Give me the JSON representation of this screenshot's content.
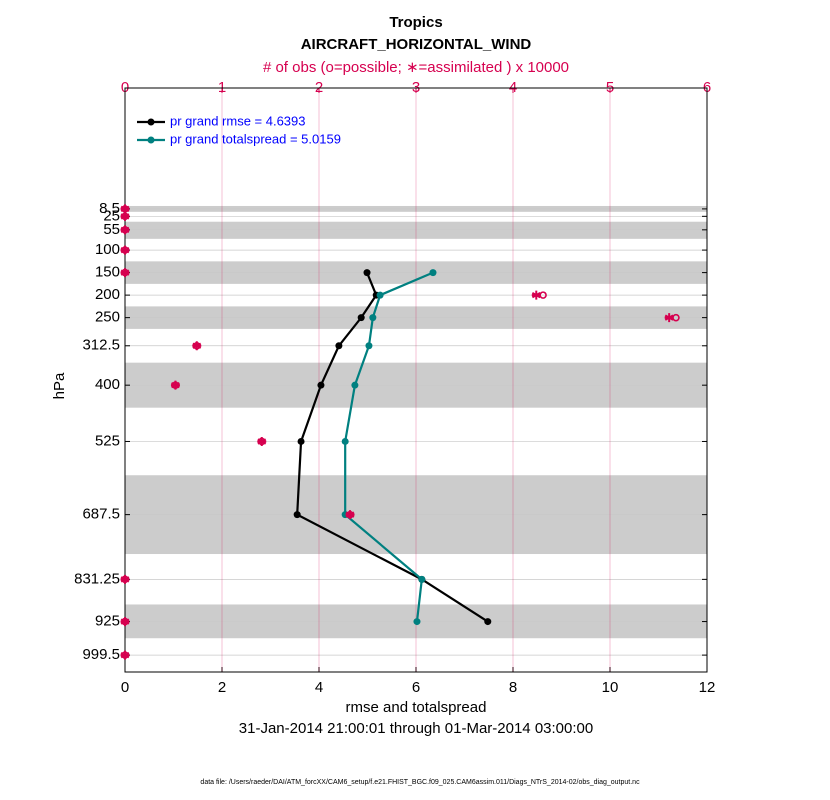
{
  "chart_data": {
    "type": "line",
    "title": "Tropics",
    "subtitle": "AIRCRAFT_HORIZONTAL_WIND",
    "x2_label": "# of obs (o=possible; ∗=assimilated ) x 10000",
    "x_label": "rmse and totalspread",
    "y_label": "hPa",
    "date_range": "31-Jan-2014 21:00:01 through 01-Mar-2014 03:00:00",
    "footer": "data file: /Users/raeder/DAI/ATM_forcXX/CAM6_setup/f.e21.FHIST_BGC.f09_025.CAM6assim.011/Diags_NTrS_2014-02/obs_diag_output.nc",
    "levels": [
      8.5,
      25,
      55,
      100,
      150,
      200,
      250,
      312.5,
      400,
      525,
      687.5,
      831.25,
      925,
      999.5
    ],
    "ylim": [
      1037,
      -260
    ],
    "yticks": [
      8.5,
      25,
      55,
      100,
      150,
      200,
      250,
      312.5,
      400,
      525,
      687.5,
      831.25,
      925,
      999.5
    ],
    "xlim": [
      0,
      12
    ],
    "xticks": [
      0,
      2,
      4,
      6,
      8,
      10,
      12
    ],
    "x2lim": [
      0,
      6
    ],
    "x2ticks": [
      0,
      1,
      2,
      3,
      4,
      5,
      6
    ],
    "grid": true,
    "bands": [
      [
        2,
        15
      ],
      [
        37,
        75
      ],
      [
        125,
        175
      ],
      [
        225,
        275
      ],
      [
        350,
        450
      ],
      [
        600,
        775
      ],
      [
        887,
        962
      ]
    ],
    "band_color": "#cccccc",
    "series": [
      {
        "name": "pr grand rmse = 4.6393",
        "color": "#000000",
        "values": [
          null,
          null,
          null,
          null,
          4.99,
          5.18,
          4.87,
          4.41,
          4.04,
          3.63,
          3.55,
          6.12,
          7.48,
          null
        ]
      },
      {
        "name": "pr grand totalspread = 5.0159",
        "color": "#008080",
        "values": [
          null,
          null,
          null,
          null,
          6.35,
          5.26,
          5.11,
          5.03,
          4.74,
          4.54,
          4.54,
          6.12,
          6.02,
          null
        ]
      }
    ],
    "obs_color": "#d6004f",
    "obs_possible": [
      0,
      0,
      0,
      0,
      0,
      4.31,
      5.68,
      0.74,
      0.52,
      1.41,
      2.32,
      0,
      0,
      0
    ],
    "obs_assimilated": [
      0,
      0,
      0,
      0,
      0,
      4.24,
      5.61,
      0.74,
      0.52,
      1.41,
      2.32,
      0,
      0,
      0
    ],
    "legend_text_color": "#0000ff"
  }
}
